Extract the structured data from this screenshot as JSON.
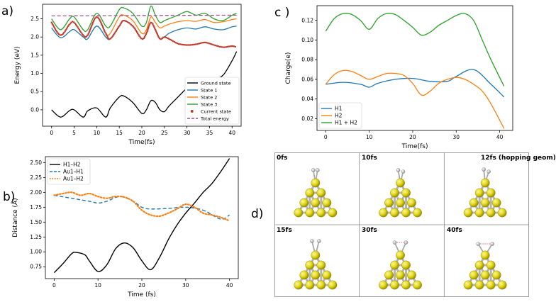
{
  "panel_labels": {
    "a": "a)",
    "b": "b)",
    "c": "c )",
    "d": "d)"
  },
  "chart_data": [
    {
      "id": "a",
      "type": "line",
      "title": "",
      "xlabel": "Time(fs)",
      "ylabel": "Energy (eV)",
      "xlim": [
        -2,
        42
      ],
      "ylim": [
        -0.45,
        2.9
      ],
      "xticks": [
        0,
        5,
        10,
        15,
        20,
        25,
        30,
        35,
        40
      ],
      "yticks": [
        0.0,
        0.5,
        1.0,
        1.5,
        2.0,
        2.5
      ],
      "ytick_labels": [
        "0.0",
        "0.5",
        "1.0",
        "1.5",
        "2.0",
        "2.5"
      ],
      "legend_position": "lower-right",
      "series": [
        {
          "name": "Ground state",
          "color": "#000000",
          "style": "solid",
          "x": [
            0,
            2,
            4,
            5,
            7,
            8,
            10,
            12,
            13,
            15,
            16,
            18,
            20,
            21,
            22,
            23,
            24,
            25,
            26,
            28,
            30,
            32,
            34,
            36,
            38,
            40,
            41
          ],
          "y": [
            0.0,
            -0.2,
            -0.02,
            0.0,
            -0.2,
            -0.03,
            0.05,
            -0.2,
            0.05,
            0.35,
            0.38,
            0.2,
            -0.1,
            0.0,
            0.25,
            0.2,
            0.0,
            -0.05,
            0.1,
            0.35,
            0.6,
            0.8,
            0.88,
            0.85,
            0.95,
            1.35,
            1.6
          ]
        },
        {
          "name": "State 1",
          "color": "#1f77b4",
          "style": "solid",
          "x": [
            0,
            2,
            4,
            5,
            7,
            8,
            10,
            12,
            13,
            15,
            16,
            18,
            20,
            21,
            22,
            23,
            24,
            25,
            26,
            28,
            30,
            32,
            34,
            36,
            38,
            40,
            41
          ],
          "y": [
            2.25,
            1.98,
            2.15,
            2.2,
            2.0,
            1.95,
            2.3,
            2.0,
            1.95,
            2.3,
            2.45,
            2.3,
            1.95,
            2.1,
            2.4,
            2.2,
            1.95,
            2.0,
            2.1,
            2.2,
            2.25,
            2.22,
            2.28,
            2.22,
            2.2,
            2.28,
            2.3
          ]
        },
        {
          "name": "State 2",
          "color": "#ff7f0e",
          "style": "solid",
          "x": [
            0,
            2,
            4,
            5,
            7,
            8,
            10,
            12,
            13,
            15,
            16,
            18,
            20,
            21,
            22,
            23,
            24,
            25,
            26,
            28,
            30,
            32,
            34,
            36,
            38,
            40,
            41
          ],
          "y": [
            2.4,
            2.05,
            2.35,
            2.4,
            2.05,
            2.05,
            2.55,
            2.1,
            2.1,
            2.55,
            2.6,
            2.45,
            2.1,
            2.2,
            2.55,
            2.4,
            2.25,
            2.3,
            2.35,
            2.42,
            2.45,
            2.43,
            2.48,
            2.4,
            2.42,
            2.48,
            2.5
          ]
        },
        {
          "name": "State 3",
          "color": "#2ca02c",
          "style": "solid",
          "x": [
            0,
            2,
            4,
            5,
            7,
            8,
            10,
            12,
            13,
            15,
            16,
            18,
            20,
            21,
            22,
            23,
            24,
            25,
            26,
            28,
            30,
            32,
            34,
            36,
            38,
            40,
            41
          ],
          "y": [
            2.5,
            2.2,
            2.5,
            2.55,
            2.2,
            2.2,
            2.65,
            2.3,
            2.3,
            2.75,
            2.8,
            2.65,
            2.3,
            2.4,
            2.85,
            2.6,
            2.4,
            2.45,
            2.5,
            2.6,
            2.7,
            2.6,
            2.65,
            2.5,
            2.45,
            2.6,
            2.65
          ]
        },
        {
          "name": "Current state",
          "color": "#c0392b",
          "style": "dots",
          "x": [
            0,
            2,
            4,
            5,
            7,
            8,
            10,
            12,
            13,
            15,
            16,
            18,
            20,
            21,
            22,
            23,
            24,
            25,
            26,
            28,
            30,
            32,
            34,
            36,
            38,
            40,
            41
          ],
          "y": [
            2.4,
            2.05,
            2.35,
            2.4,
            2.05,
            2.05,
            2.55,
            2.1,
            1.95,
            2.3,
            2.45,
            2.3,
            1.95,
            2.1,
            2.4,
            2.2,
            1.95,
            2.0,
            1.95,
            1.82,
            1.78,
            1.8,
            1.85,
            1.78,
            1.72,
            1.75,
            1.72
          ]
        },
        {
          "name": "Total energy",
          "color": "#9b4f96",
          "style": "dashed",
          "x": [
            0,
            41
          ],
          "y": [
            2.58,
            2.6
          ]
        }
      ]
    },
    {
      "id": "b",
      "type": "line",
      "title": "",
      "xlabel": "Time (fs)",
      "ylabel": "Distance (Å)",
      "xlim": [
        -2,
        42
      ],
      "ylim": [
        0.55,
        2.6
      ],
      "xticks": [
        0,
        10,
        20,
        30,
        40
      ],
      "yticks": [
        0.75,
        1.0,
        1.25,
        1.5,
        1.75,
        2.0,
        2.25,
        2.5
      ],
      "ytick_labels": [
        "0.75",
        "1.00",
        "1.25",
        "1.50",
        "1.75",
        "2.00",
        "2.25",
        "2.50"
      ],
      "legend_position": "top-left",
      "series": [
        {
          "name": "H1–H2",
          "color": "#000000",
          "style": "solid",
          "x": [
            0,
            2,
            4,
            5,
            7,
            8,
            10,
            12,
            14,
            16,
            18,
            20,
            22,
            24,
            26,
            28,
            30,
            32,
            34,
            36,
            38,
            40
          ],
          "y": [
            0.65,
            0.8,
            0.97,
            0.99,
            0.95,
            0.85,
            0.67,
            0.78,
            1.05,
            1.15,
            1.07,
            0.85,
            0.7,
            0.9,
            1.2,
            1.45,
            1.65,
            1.82,
            2.0,
            2.15,
            2.35,
            2.57
          ]
        },
        {
          "name": "Au1–H1",
          "color": "#1f77b4",
          "style": "dashed",
          "x": [
            0,
            4,
            8,
            10,
            12,
            15,
            18,
            20,
            22,
            26,
            30,
            34,
            38,
            40
          ],
          "y": [
            1.95,
            1.9,
            1.85,
            1.82,
            1.85,
            1.93,
            1.85,
            1.75,
            1.72,
            1.73,
            1.75,
            1.7,
            1.55,
            1.62
          ]
        },
        {
          "name": "Au1–H2",
          "color": "#ff7f0e",
          "style": "dotted",
          "x": [
            0,
            2,
            4,
            6,
            8,
            10,
            12,
            14,
            16,
            18,
            20,
            22,
            24,
            26,
            28,
            30,
            32,
            34,
            36,
            38,
            40
          ],
          "y": [
            1.95,
            1.98,
            2.0,
            1.95,
            1.98,
            1.93,
            1.9,
            1.93,
            1.92,
            1.85,
            1.7,
            1.62,
            1.6,
            1.65,
            1.72,
            1.8,
            1.75,
            1.65,
            1.62,
            1.58,
            1.52
          ]
        }
      ]
    },
    {
      "id": "c",
      "type": "line",
      "title": "",
      "xlabel": "Time(fs)",
      "ylabel": "Charge(e)",
      "xlim": [
        -2,
        43
      ],
      "ylim": [
        0.008,
        0.135
      ],
      "xticks": [
        0,
        10,
        20,
        30,
        40
      ],
      "yticks": [
        0.02,
        0.04,
        0.06,
        0.08,
        0.1,
        0.12
      ],
      "ytick_labels": [
        "0.02",
        "0.04",
        "0.06",
        "0.08",
        "0.10",
        "0.12"
      ],
      "legend_position": "lower-left",
      "series": [
        {
          "name": "H1",
          "color": "#1f77b4",
          "style": "solid",
          "x": [
            0,
            4,
            8,
            10,
            12,
            16,
            20,
            24,
            28,
            30,
            34,
            38,
            41
          ],
          "y": [
            0.055,
            0.057,
            0.055,
            0.052,
            0.056,
            0.06,
            0.061,
            0.058,
            0.058,
            0.063,
            0.07,
            0.055,
            0.042
          ]
        },
        {
          "name": "H2",
          "color": "#ff7f0e",
          "style": "solid",
          "x": [
            0,
            2,
            4,
            6,
            8,
            10,
            12,
            14,
            16,
            18,
            20,
            22,
            24,
            26,
            28,
            30,
            32,
            34,
            36,
            38,
            41
          ],
          "y": [
            0.055,
            0.065,
            0.069,
            0.068,
            0.064,
            0.06,
            0.063,
            0.066,
            0.066,
            0.064,
            0.056,
            0.044,
            0.048,
            0.056,
            0.06,
            0.062,
            0.06,
            0.055,
            0.048,
            0.035,
            0.01
          ]
        },
        {
          "name": "H1 + H2",
          "color": "#2ca02c",
          "style": "solid",
          "x": [
            0,
            2,
            4,
            6,
            8,
            10,
            12,
            14,
            16,
            18,
            20,
            22,
            24,
            26,
            28,
            30,
            32,
            34,
            36,
            38,
            41
          ],
          "y": [
            0.109,
            0.122,
            0.127,
            0.126,
            0.12,
            0.111,
            0.122,
            0.127,
            0.126,
            0.12,
            0.113,
            0.105,
            0.108,
            0.115,
            0.12,
            0.125,
            0.127,
            0.12,
            0.1,
            0.08,
            0.053
          ]
        }
      ]
    }
  ],
  "snapshots": [
    {
      "label": "0fs"
    },
    {
      "label": "10fs"
    },
    {
      "label": "12fs (hopping geom)"
    },
    {
      "label": "15fs"
    },
    {
      "label": "30fs"
    },
    {
      "label": "40fs"
    }
  ]
}
